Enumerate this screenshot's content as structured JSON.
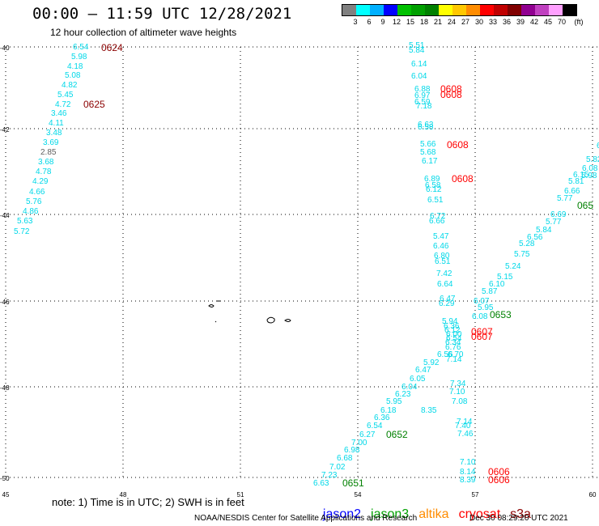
{
  "title": "00:00 – 11:59 UTC 12/28/2021",
  "subtitle": "12 hour collection of altimeter wave heights",
  "legend": {
    "colors": [
      "#808080",
      "#00ffff",
      "#00b0ff",
      "#0000ff",
      "#00c000",
      "#00a000",
      "#008000",
      "#ffff00",
      "#ffc800",
      "#ff8c00",
      "#ff0000",
      "#c00000",
      "#800000",
      "#900090",
      "#c040c0",
      "#ffa0ff",
      "#000000"
    ],
    "labels": [
      "3",
      "6",
      "9",
      "12",
      "15",
      "18",
      "21",
      "24",
      "27",
      "30",
      "33",
      "36",
      "39",
      "42",
      "45",
      "70"
    ],
    "unit": "(ft)"
  },
  "axes": {
    "x_ticks": [
      "45",
      "48",
      "51",
      "54",
      "57",
      "60"
    ],
    "y_ticks": [
      "-40",
      "-42",
      "-44",
      "-46",
      "-48",
      "-50"
    ]
  },
  "colors": {
    "cyan": "#00d8e8",
    "grey": "#606060",
    "dark_red": "#8b0000",
    "red": "#ff0000",
    "green": "#008000",
    "jason2": "#0000ff",
    "jason3": "#00a000",
    "altika": "#ff8c00",
    "cryosat": "#ff0000",
    "s3a": "#8b0000"
  },
  "tracks": [
    {
      "id": "t0624",
      "values": [
        "6.54",
        "5.98",
        "4.18",
        "5.08",
        "4.82",
        "5.45",
        "4.72",
        "3.46",
        "4.11",
        "3.48",
        "3.69",
        "2.85",
        "3.68",
        "4.78",
        "4.29",
        "4.66",
        "5.76",
        "4.86",
        "5.63",
        "5.72"
      ],
      "colors": [
        "c",
        "c",
        "c",
        "c",
        "c",
        "c",
        "c",
        "c",
        "c",
        "c",
        "c",
        "g",
        "c",
        "c",
        "c",
        "c",
        "c",
        "c",
        "c",
        "c"
      ]
    },
    {
      "id": "tmid",
      "values": [
        "5.51",
        "5.84",
        "6.14",
        "6.04",
        "6.88",
        "6.97",
        "6.59",
        "7.18",
        "6.63",
        "6.58",
        "5.66",
        "5.68",
        "6.17",
        "6.89",
        "6.58",
        "6.12",
        "6.51",
        "6.72",
        "6.66",
        "5.47",
        "6.46",
        "6.80",
        "6.51",
        "7.42",
        "6.64",
        "6.47",
        "6.29",
        "5.94",
        "6.36",
        "6.12",
        "6.00",
        "6.54",
        "6.34",
        "6.76",
        "6.70",
        "7.14",
        "7.34",
        "7.10",
        "7.08",
        "7.14",
        "7.40",
        "7.46",
        "7.10",
        "8.14",
        "8.39",
        "8.35"
      ]
    },
    {
      "id": "tdiag",
      "values": [
        "6.03",
        "5.82",
        "6.08",
        "5.98",
        "6.15",
        "5.81",
        "6.66",
        "5.77",
        "6.69",
        "5.77",
        "5.84",
        "6.56",
        "5.28",
        "5.75",
        "5.24",
        "5.15",
        "6.10",
        "5.87",
        "6.07",
        "5.95",
        "6.08",
        "6.56",
        "5.92",
        "6.47",
        "6.05",
        "6.04",
        "6.23",
        "5.95",
        "6.18",
        "6.36",
        "6.54",
        "6.27",
        "7.00",
        "6.98",
        "6.68",
        "7.02",
        "7.23",
        "6.63"
      ]
    }
  ],
  "times": [
    {
      "text": "0624",
      "color": "dark_red"
    },
    {
      "text": "0625",
      "color": "dark_red"
    },
    {
      "text": "0608",
      "color": "red"
    },
    {
      "text": "0608",
      "color": "red"
    },
    {
      "text": "0608",
      "color": "red"
    },
    {
      "text": "0608",
      "color": "red"
    },
    {
      "text": "065",
      "color": "green"
    },
    {
      "text": "0653",
      "color": "green"
    },
    {
      "text": "0607",
      "color": "red"
    },
    {
      "text": "0607",
      "color": "red"
    },
    {
      "text": "0652",
      "color": "green"
    },
    {
      "text": "0651",
      "color": "green"
    },
    {
      "text": "0606",
      "color": "red"
    },
    {
      "text": "0606",
      "color": "red"
    }
  ],
  "note": "note: 1) Time is in UTC; 2) SWH is in feet",
  "satellites": [
    "jason2",
    "jason3",
    "altika",
    "cryosat",
    "s3a"
  ],
  "footer": "NOAA/NESDIS Center for Satellite Applications and Research",
  "footer_timestamp": "Dec 30 08:29:20 UTC 2021"
}
